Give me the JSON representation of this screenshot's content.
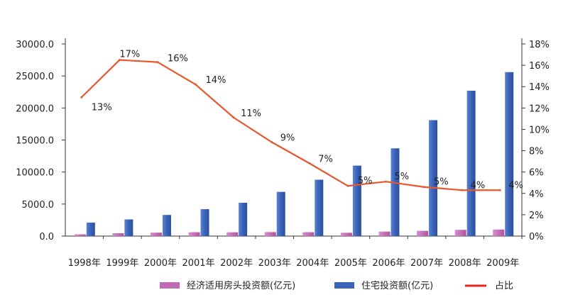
{
  "chart_data": {
    "type": "bar",
    "categories": [
      "1998年",
      "1999年",
      "2000年",
      "2001年",
      "2002年",
      "2003年",
      "2004年",
      "2005年",
      "2006年",
      "2007年",
      "2008年",
      "2009年"
    ],
    "series": [
      {
        "name": "经济适用房头投资额(亿元)",
        "type": "bar",
        "axis": "left",
        "color": "#c06bb6",
        "values": [
          270,
          440,
          540,
          600,
          590,
          620,
          600,
          520,
          700,
          820,
          970,
          1020
        ]
      },
      {
        "name": "住宅投资额(亿元)",
        "type": "bar",
        "axis": "left",
        "color": "#3a63b8",
        "values": [
          2100,
          2600,
          3300,
          4200,
          5200,
          6900,
          8800,
          11000,
          13700,
          18100,
          22700,
          25600
        ]
      },
      {
        "name": "占比",
        "type": "line",
        "axis": "right",
        "color": "#e8572e",
        "values": [
          13,
          16.5,
          16.3,
          14.2,
          11.1,
          8.8,
          6.8,
          4.7,
          5.1,
          4.6,
          4.3,
          4.3
        ],
        "labels": [
          "13%",
          "17%",
          "16%",
          "14%",
          "11%",
          "9%",
          "7%",
          "5%",
          "5%",
          "5%",
          "4%",
          "4%"
        ]
      }
    ],
    "y_left": {
      "ticks": [
        "0.0",
        "5000.0",
        "10000.0",
        "15000.0",
        "20000.0",
        "25000.0",
        "30000.0"
      ],
      "range": [
        0,
        30000
      ]
    },
    "y_right": {
      "ticks": [
        "0%",
        "2%",
        "4%",
        "6%",
        "8%",
        "10%",
        "12%",
        "14%",
        "16%",
        "18%"
      ],
      "range": [
        0,
        18
      ]
    },
    "legend": {
      "items": [
        "经济适用房头投资额(亿元)",
        "住宅投资额(亿元)",
        "占比"
      ],
      "position": "bottom"
    }
  }
}
